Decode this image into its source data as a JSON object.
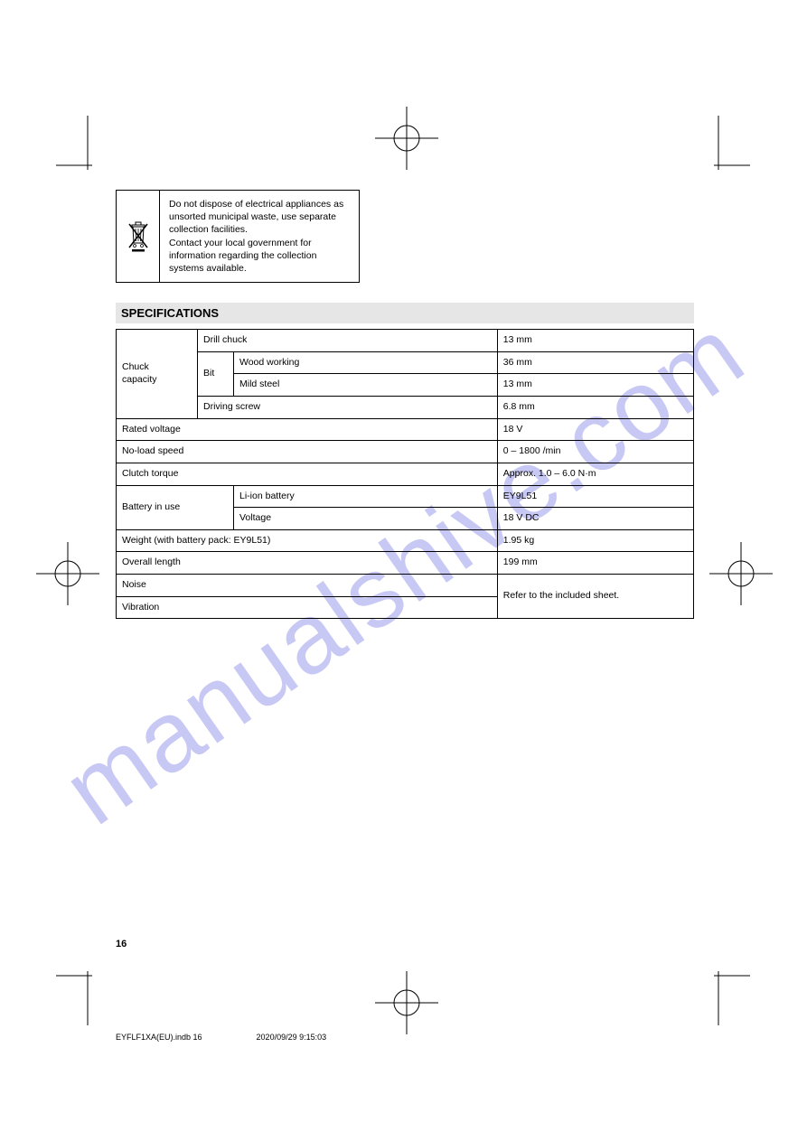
{
  "watermark": "manualshive.com",
  "disposal": {
    "line1": "Do not dispose of electrical appliances as",
    "line2": "unsorted municipal waste, use separate",
    "line3": "collection facilities.",
    "line4": "Contact your local government for",
    "line5": "information regarding the collection",
    "line6": "systems available."
  },
  "section_title": "SPECIFICATIONS",
  "spec": {
    "r0c0": "Chuck\ncapacity",
    "r0c1": "Drill chuck",
    "r0c2": "13 mm",
    "r1c0": "Bit",
    "r1c1": "Wood working",
    "r1c2": "36 mm",
    "r2c1": "Mild steel",
    "r2c2": "13 mm",
    "r3c0": "Driving screw",
    "r3c1": "6.8 mm",
    "r4c0": "Rated voltage",
    "r4c1": "18 V",
    "r5c0": "No-load speed",
    "r5c1": "0 – 1800 /min",
    "r6c0": "Clutch torque",
    "r6c1": "Approx. 1.0 – 6.0 N·m",
    "r7c0": "Battery in use",
    "r7c1": "Li-ion battery",
    "r7c2": "EY9L51",
    "r8c1": "Voltage",
    "r8c2": "18 V DC",
    "r9c0": "Weight (with battery pack: EY9L51)",
    "r9c1": "1.95 kg",
    "r10c0": "Overall length",
    "r10c1": "199 mm",
    "r11c0": "Noise",
    "r11c1": "Refer to the included sheet.",
    "r12c0": "Vibration"
  },
  "page_number": "16",
  "footer_file": "EYFLF1XA(EU).indb   16",
  "footer_date": "2020/09/29   9:15:03"
}
